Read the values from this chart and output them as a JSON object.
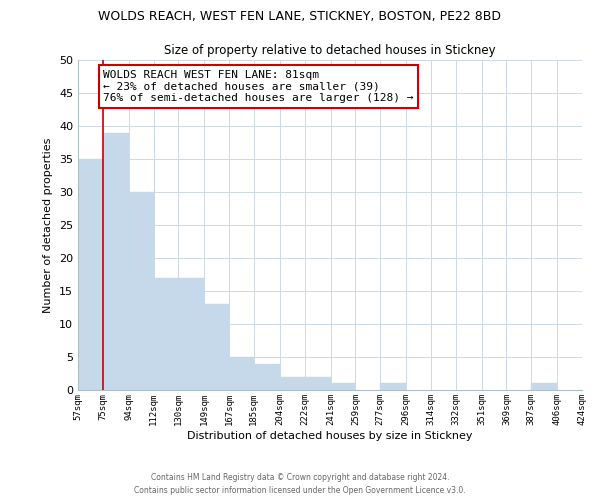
{
  "title": "WOLDS REACH, WEST FEN LANE, STICKNEY, BOSTON, PE22 8BD",
  "subtitle": "Size of property relative to detached houses in Stickney",
  "xlabel": "Distribution of detached houses by size in Stickney",
  "ylabel": "Number of detached properties",
  "bar_color": "#c5d9ea",
  "bin_edges": [
    57,
    75,
    94,
    112,
    130,
    149,
    167,
    185,
    204,
    222,
    241,
    259,
    277,
    296,
    314,
    332,
    351,
    369,
    387,
    406,
    424
  ],
  "bin_labels": [
    "57sqm",
    "75sqm",
    "94sqm",
    "112sqm",
    "130sqm",
    "149sqm",
    "167sqm",
    "185sqm",
    "204sqm",
    "222sqm",
    "241sqm",
    "259sqm",
    "277sqm",
    "296sqm",
    "314sqm",
    "332sqm",
    "351sqm",
    "369sqm",
    "387sqm",
    "406sqm",
    "424sqm"
  ],
  "counts": [
    35,
    39,
    30,
    17,
    17,
    13,
    5,
    4,
    2,
    2,
    1,
    0,
    1,
    0,
    0,
    0,
    0,
    0,
    1,
    0,
    0
  ],
  "ylim": [
    0,
    50
  ],
  "yticks": [
    0,
    5,
    10,
    15,
    20,
    25,
    30,
    35,
    40,
    45,
    50
  ],
  "vline_x": 75,
  "vline_color": "#cc0000",
  "annotation_text": "WOLDS REACH WEST FEN LANE: 81sqm\n← 23% of detached houses are smaller (39)\n76% of semi-detached houses are larger (128) →",
  "annotation_box_color": "#ffffff",
  "annotation_box_edge": "#cc0000",
  "footer_line1": "Contains HM Land Registry data © Crown copyright and database right 2024.",
  "footer_line2": "Contains public sector information licensed under the Open Government Licence v3.0.",
  "background_color": "#ffffff",
  "grid_color": "#cdd9e5",
  "spine_color": "#b0bec8"
}
